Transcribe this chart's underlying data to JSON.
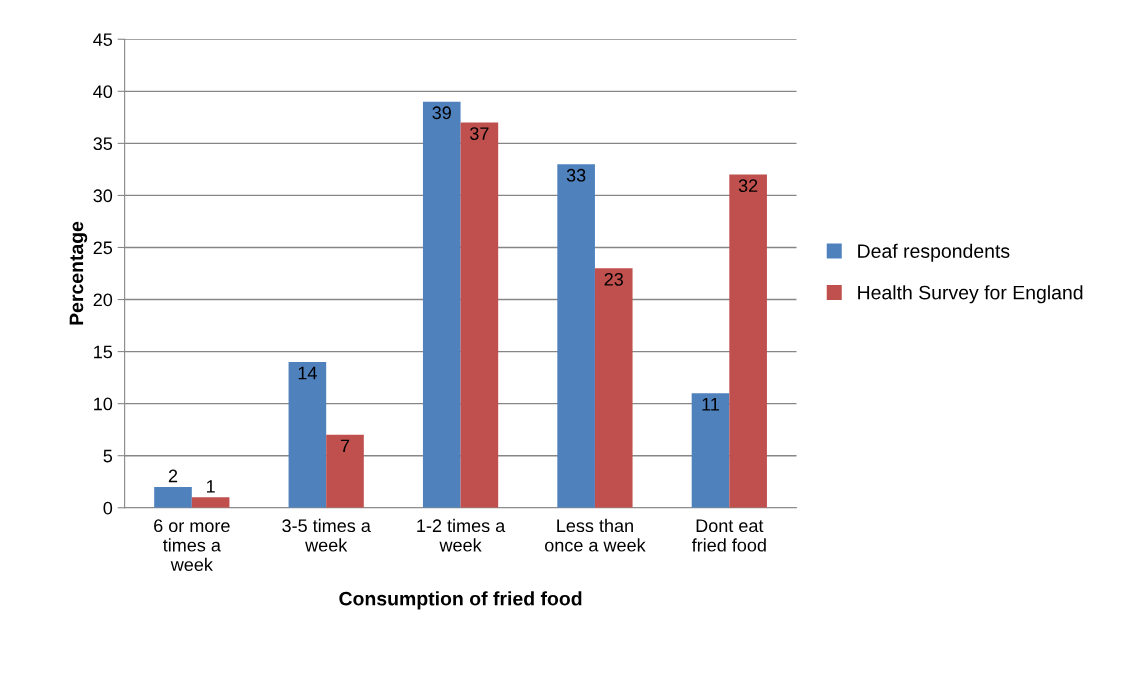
{
  "chart_data": {
    "type": "bar",
    "xlabel": "Consumption of fried food",
    "ylabel": "Percentage",
    "categories": [
      "6 or more\ntimes a\nweek",
      "3-5 times a\nweek",
      "1-2 times a\nweek",
      "Less than\nonce a week",
      "Dont eat\nfried food"
    ],
    "series": [
      {
        "name": "Deaf respondents",
        "color": "#4f81bd",
        "values": [
          2,
          14,
          39,
          33,
          11
        ]
      },
      {
        "name": "Health Survey for England",
        "color": "#c0504d",
        "values": [
          1,
          7,
          37,
          23,
          32
        ]
      }
    ],
    "ylim": [
      0,
      45
    ],
    "yticks": [
      0,
      5,
      10,
      15,
      20,
      25,
      30,
      35,
      40,
      45
    ],
    "grid": "y",
    "legend": "right",
    "data_labels": true
  }
}
